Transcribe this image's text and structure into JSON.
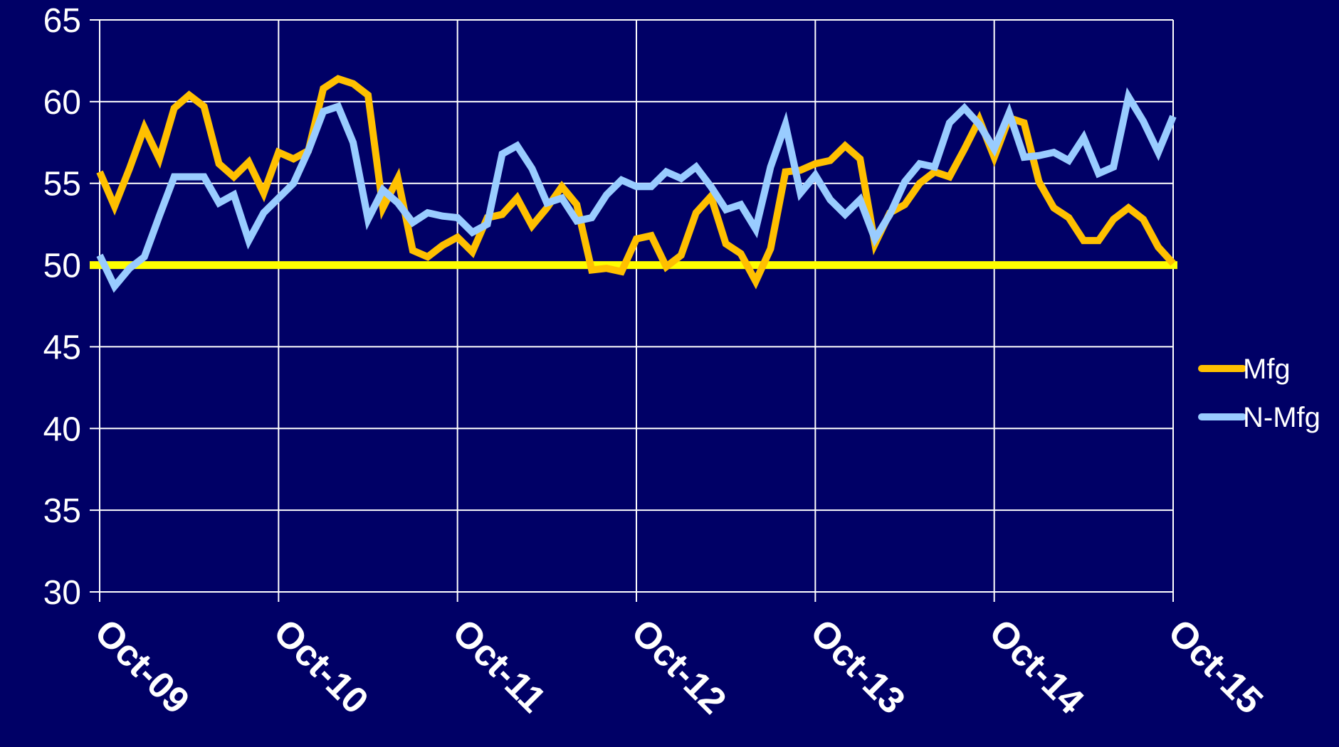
{
  "chart_data": {
    "type": "line",
    "title": "",
    "xlabel": "",
    "ylabel": "",
    "ylim": [
      30,
      65
    ],
    "y_ticks": [
      "30",
      "35",
      "40",
      "45",
      "50",
      "55",
      "60",
      "65"
    ],
    "x_tick_labels": [
      "Oct-09",
      "Oct-10",
      "Oct-11",
      "Oct-12",
      "Oct-13",
      "Oct-14",
      "Oct-15"
    ],
    "grid": true,
    "legend_position": "right",
    "reference_line": {
      "y": 50,
      "color": "#ffff00"
    },
    "series": [
      {
        "name": "Mfg",
        "color": "#ffc000",
        "values": [
          55.7,
          53.6,
          55.9,
          58.4,
          56.5,
          59.6,
          60.4,
          59.7,
          56.2,
          55.4,
          56.3,
          54.4,
          56.9,
          56.5,
          57.0,
          60.8,
          61.4,
          61.1,
          60.4,
          53.5,
          55.3,
          50.9,
          50.5,
          51.2,
          51.7,
          50.8,
          52.9,
          53.1,
          54.1,
          52.4,
          53.5,
          54.8,
          53.7,
          49.7,
          49.8,
          49.6,
          51.6,
          51.8,
          49.9,
          50.6,
          53.2,
          54.2,
          51.3,
          50.7,
          49.0,
          51.0,
          55.7,
          55.8,
          56.2,
          56.4,
          57.3,
          56.5,
          51.3,
          53.2,
          53.7,
          55.0,
          55.7,
          55.4,
          57.1,
          58.9,
          56.6,
          59.0,
          58.7,
          55.1,
          53.5,
          52.9,
          51.5,
          51.5,
          52.8,
          53.5,
          52.8,
          51.1,
          50.1
        ]
      },
      {
        "name": "N-Mfg",
        "color": "#99ccff",
        "values": [
          50.6,
          48.7,
          49.8,
          50.5,
          53.0,
          55.4,
          55.4,
          55.4,
          53.8,
          54.3,
          51.5,
          53.2,
          54.1,
          55.0,
          57.0,
          59.4,
          59.7,
          57.5,
          52.8,
          54.6,
          53.8,
          52.6,
          53.2,
          53.0,
          52.9,
          52.0,
          52.5,
          56.8,
          57.3,
          55.9,
          53.8,
          54.1,
          52.7,
          52.9,
          54.3,
          55.2,
          54.8,
          54.8,
          55.7,
          55.3,
          56.0,
          54.8,
          53.4,
          53.7,
          52.2,
          56.0,
          58.6,
          54.4,
          55.5,
          54.0,
          53.1,
          54.0,
          51.6,
          53.1,
          55.1,
          56.2,
          56.0,
          58.7,
          59.6,
          58.6,
          57.1,
          59.3,
          56.6,
          56.7,
          56.9,
          56.4,
          57.8,
          55.6,
          56.0,
          60.3,
          58.8,
          56.9,
          59.1
        ]
      }
    ]
  }
}
